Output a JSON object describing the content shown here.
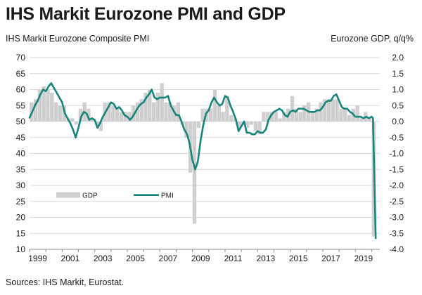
{
  "chart_data": {
    "type": "line",
    "title": "IHS Markit Eurozone PMI and GDP",
    "left_axis_label": "IHS Markit Eurozone Composite PMI",
    "right_axis_label": "Eurozone GDP, q/q%",
    "source": "Sources: IHS Markit, Eurostat.",
    "y_left": {
      "min": 10,
      "max": 70,
      "step": 5,
      "ticks": [
        "10",
        "15",
        "20",
        "25",
        "30",
        "35",
        "40",
        "45",
        "50",
        "55",
        "60",
        "65",
        "70"
      ]
    },
    "y_right": {
      "min": -4.0,
      "max": 2.0,
      "step": 0.5,
      "ticks": [
        "-4.0",
        "-3.5",
        "-3.0",
        "-2.5",
        "-2.0",
        "-1.5",
        "-1.0",
        "-0.5",
        "0.0",
        "0.5",
        "1.0",
        "1.5",
        "2.0"
      ]
    },
    "x_axis": {
      "min": 1999,
      "max": 2020.5,
      "ticks": [
        "1999",
        "2001",
        "2003",
        "2005",
        "2007",
        "2009",
        "2011",
        "2013",
        "2015",
        "2017",
        "2019"
      ]
    },
    "grid": "horizontal",
    "colors": {
      "pmi": "#17857d",
      "gdp": "#cfcfcf",
      "grid": "#d9d9d9"
    },
    "series": [
      {
        "name": "GDP",
        "axis": "right",
        "kind": "bar",
        "x": [
          1999.0,
          1999.25,
          1999.5,
          1999.75,
          2000.0,
          2000.25,
          2000.5,
          2000.75,
          2001.0,
          2001.25,
          2001.5,
          2001.75,
          2002.0,
          2002.25,
          2002.5,
          2002.75,
          2003.0,
          2003.25,
          2003.5,
          2003.75,
          2004.0,
          2004.25,
          2004.5,
          2004.75,
          2005.0,
          2005.25,
          2005.5,
          2005.75,
          2006.0,
          2006.25,
          2006.5,
          2006.75,
          2007.0,
          2007.25,
          2007.5,
          2007.75,
          2008.0,
          2008.25,
          2008.5,
          2008.75,
          2009.0,
          2009.25,
          2009.5,
          2009.75,
          2010.0,
          2010.25,
          2010.5,
          2010.75,
          2011.0,
          2011.25,
          2011.5,
          2011.75,
          2012.0,
          2012.25,
          2012.5,
          2012.75,
          2013.0,
          2013.25,
          2013.5,
          2013.75,
          2014.0,
          2014.25,
          2014.5,
          2014.75,
          2015.0,
          2015.25,
          2015.5,
          2015.75,
          2016.0,
          2016.25,
          2016.5,
          2016.75,
          2017.0,
          2017.25,
          2017.5,
          2017.75,
          2018.0,
          2018.25,
          2018.5,
          2018.75,
          2019.0,
          2019.25,
          2019.5,
          2019.75,
          2020.0
        ],
        "values": [
          0.6,
          0.7,
          1.0,
          1.1,
          1.0,
          0.9,
          0.6,
          0.5,
          0.5,
          0.1,
          0.1,
          -0.1,
          0.4,
          0.6,
          0.4,
          0.1,
          -0.1,
          -0.3,
          0.6,
          0.6,
          0.5,
          0.4,
          0.3,
          0.3,
          0.3,
          0.5,
          0.6,
          0.7,
          0.9,
          1.0,
          0.6,
          0.9,
          1.2,
          0.6,
          0.6,
          0.5,
          0.6,
          -0.1,
          -0.5,
          -1.6,
          -3.2,
          -0.2,
          0.4,
          0.4,
          0.4,
          1.0,
          0.5,
          0.3,
          0.8,
          0.2,
          0.1,
          -0.2,
          -0.1,
          -0.2,
          -0.1,
          -0.3,
          -0.4,
          0.3,
          0.3,
          0.3,
          0.3,
          0.1,
          0.3,
          0.4,
          0.8,
          0.4,
          0.3,
          0.5,
          0.6,
          0.3,
          0.4,
          0.6,
          0.7,
          0.7,
          0.7,
          0.7,
          0.4,
          0.4,
          0.2,
          0.4,
          0.5,
          0.1,
          0.3,
          0.1,
          -3.6
        ]
      },
      {
        "name": "PMI",
        "axis": "left",
        "kind": "line",
        "x": [
          1999.0,
          1999.17,
          1999.33,
          1999.5,
          1999.67,
          1999.83,
          2000.0,
          2000.17,
          2000.33,
          2000.5,
          2000.67,
          2000.83,
          2001.0,
          2001.17,
          2001.33,
          2001.5,
          2001.67,
          2001.83,
          2002.0,
          2002.17,
          2002.33,
          2002.5,
          2002.67,
          2002.83,
          2003.0,
          2003.17,
          2003.33,
          2003.5,
          2003.67,
          2003.83,
          2004.0,
          2004.17,
          2004.33,
          2004.5,
          2004.67,
          2004.83,
          2005.0,
          2005.17,
          2005.33,
          2005.5,
          2005.67,
          2005.83,
          2006.0,
          2006.17,
          2006.33,
          2006.5,
          2006.67,
          2006.83,
          2007.0,
          2007.17,
          2007.33,
          2007.5,
          2007.67,
          2007.83,
          2008.0,
          2008.17,
          2008.33,
          2008.5,
          2008.67,
          2008.83,
          2009.0,
          2009.17,
          2009.33,
          2009.5,
          2009.67,
          2009.83,
          2010.0,
          2010.17,
          2010.33,
          2010.5,
          2010.67,
          2010.83,
          2011.0,
          2011.17,
          2011.33,
          2011.5,
          2011.67,
          2011.83,
          2012.0,
          2012.17,
          2012.33,
          2012.5,
          2012.67,
          2012.83,
          2013.0,
          2013.17,
          2013.33,
          2013.5,
          2013.67,
          2013.83,
          2014.0,
          2014.17,
          2014.33,
          2014.5,
          2014.67,
          2014.83,
          2015.0,
          2015.17,
          2015.33,
          2015.5,
          2015.67,
          2015.83,
          2016.0,
          2016.17,
          2016.33,
          2016.5,
          2016.67,
          2016.83,
          2017.0,
          2017.17,
          2017.33,
          2017.5,
          2017.67,
          2017.83,
          2018.0,
          2018.17,
          2018.33,
          2018.5,
          2018.67,
          2018.83,
          2019.0,
          2019.17,
          2019.33,
          2019.5,
          2019.67,
          2019.83,
          2020.0,
          2020.08,
          2020.17,
          2020.25
        ],
        "values": [
          51.2,
          53.0,
          55.0,
          56.5,
          58.5,
          60.0,
          59.5,
          61.0,
          62.0,
          60.5,
          59.0,
          57.5,
          56.0,
          52.5,
          51.0,
          49.5,
          47.5,
          45.0,
          48.0,
          51.5,
          53.0,
          52.5,
          50.5,
          51.0,
          50.5,
          48.0,
          49.5,
          51.5,
          53.0,
          54.5,
          56.0,
          55.5,
          54.0,
          54.5,
          53.5,
          52.0,
          51.5,
          50.5,
          51.5,
          53.0,
          54.5,
          55.5,
          56.0,
          57.5,
          58.5,
          60.0,
          57.5,
          57.0,
          57.5,
          57.5,
          57.5,
          58.0,
          55.0,
          53.5,
          52.0,
          52.0,
          50.0,
          47.5,
          46.0,
          43.0,
          38.0,
          35.0,
          37.5,
          44.0,
          49.0,
          52.5,
          53.5,
          56.0,
          57.5,
          56.0,
          55.0,
          55.5,
          58.0,
          57.5,
          55.0,
          53.0,
          50.5,
          47.0,
          48.5,
          50.0,
          46.5,
          46.5,
          46.0,
          46.0,
          47.0,
          46.5,
          46.5,
          47.5,
          50.5,
          52.0,
          53.0,
          53.5,
          54.0,
          53.5,
          52.0,
          51.5,
          53.0,
          53.5,
          53.0,
          54.0,
          54.0,
          54.0,
          53.5,
          53.0,
          53.0,
          53.0,
          53.5,
          53.5,
          54.5,
          56.0,
          56.5,
          56.5,
          58.0,
          58.5,
          56.5,
          54.5,
          54.0,
          54.0,
          53.0,
          52.5,
          51.5,
          51.5,
          51.5,
          51.0,
          51.5,
          51.0,
          51.5,
          51.0,
          31.0,
          13.5
        ]
      }
    ],
    "legend": {
      "items": [
        "GDP",
        "PMI"
      ],
      "position": "lower-left"
    }
  }
}
